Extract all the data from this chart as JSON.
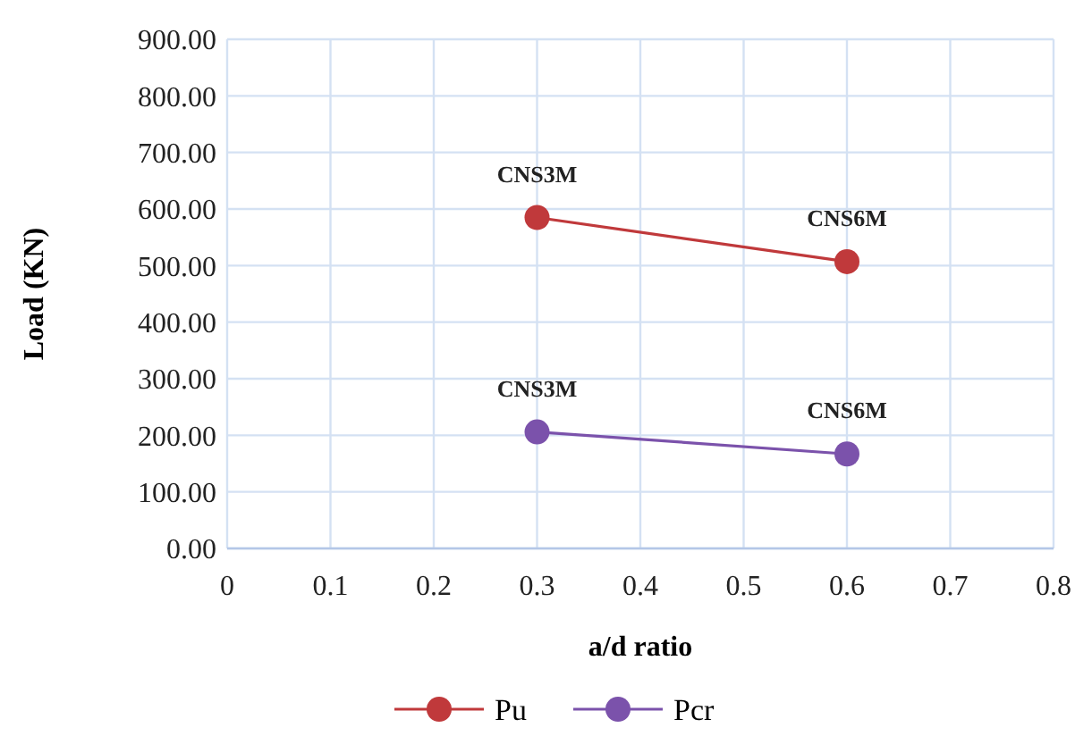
{
  "chart_data": {
    "type": "line",
    "xlabel": "a/d ratio",
    "ylabel": "Load (KN)",
    "x": [
      0.3,
      0.6
    ],
    "series": [
      {
        "name": "Pu",
        "color": "#c0393b",
        "values": [
          585,
          507
        ],
        "value_labels": [
          "CNS3M",
          "CNS6M"
        ]
      },
      {
        "name": "Pcr",
        "color": "#7b52ab",
        "values": [
          206,
          167
        ],
        "value_labels": [
          "CNS3M",
          "CNS6M"
        ]
      }
    ],
    "xlim": [
      0,
      0.8
    ],
    "xticks": [
      0,
      0.1,
      0.2,
      0.3,
      0.4,
      0.5,
      0.6,
      0.7,
      0.8
    ],
    "ylim": [
      0,
      900
    ],
    "yticks": [
      {
        "value": 0,
        "label": "0.00"
      },
      {
        "value": 100,
        "label": "100.00"
      },
      {
        "value": 200,
        "label": "200.00"
      },
      {
        "value": 300,
        "label": "300.00"
      },
      {
        "value": 400,
        "label": "400.00"
      },
      {
        "value": 500,
        "label": "500.00"
      },
      {
        "value": 600,
        "label": "600.00"
      },
      {
        "value": 700,
        "label": "700.00"
      },
      {
        "value": 800,
        "label": "800.00"
      },
      {
        "value": 900,
        "label": "900.00"
      }
    ],
    "grid": true,
    "legend": "bottom",
    "marker": "circle",
    "line_style": "solid"
  }
}
